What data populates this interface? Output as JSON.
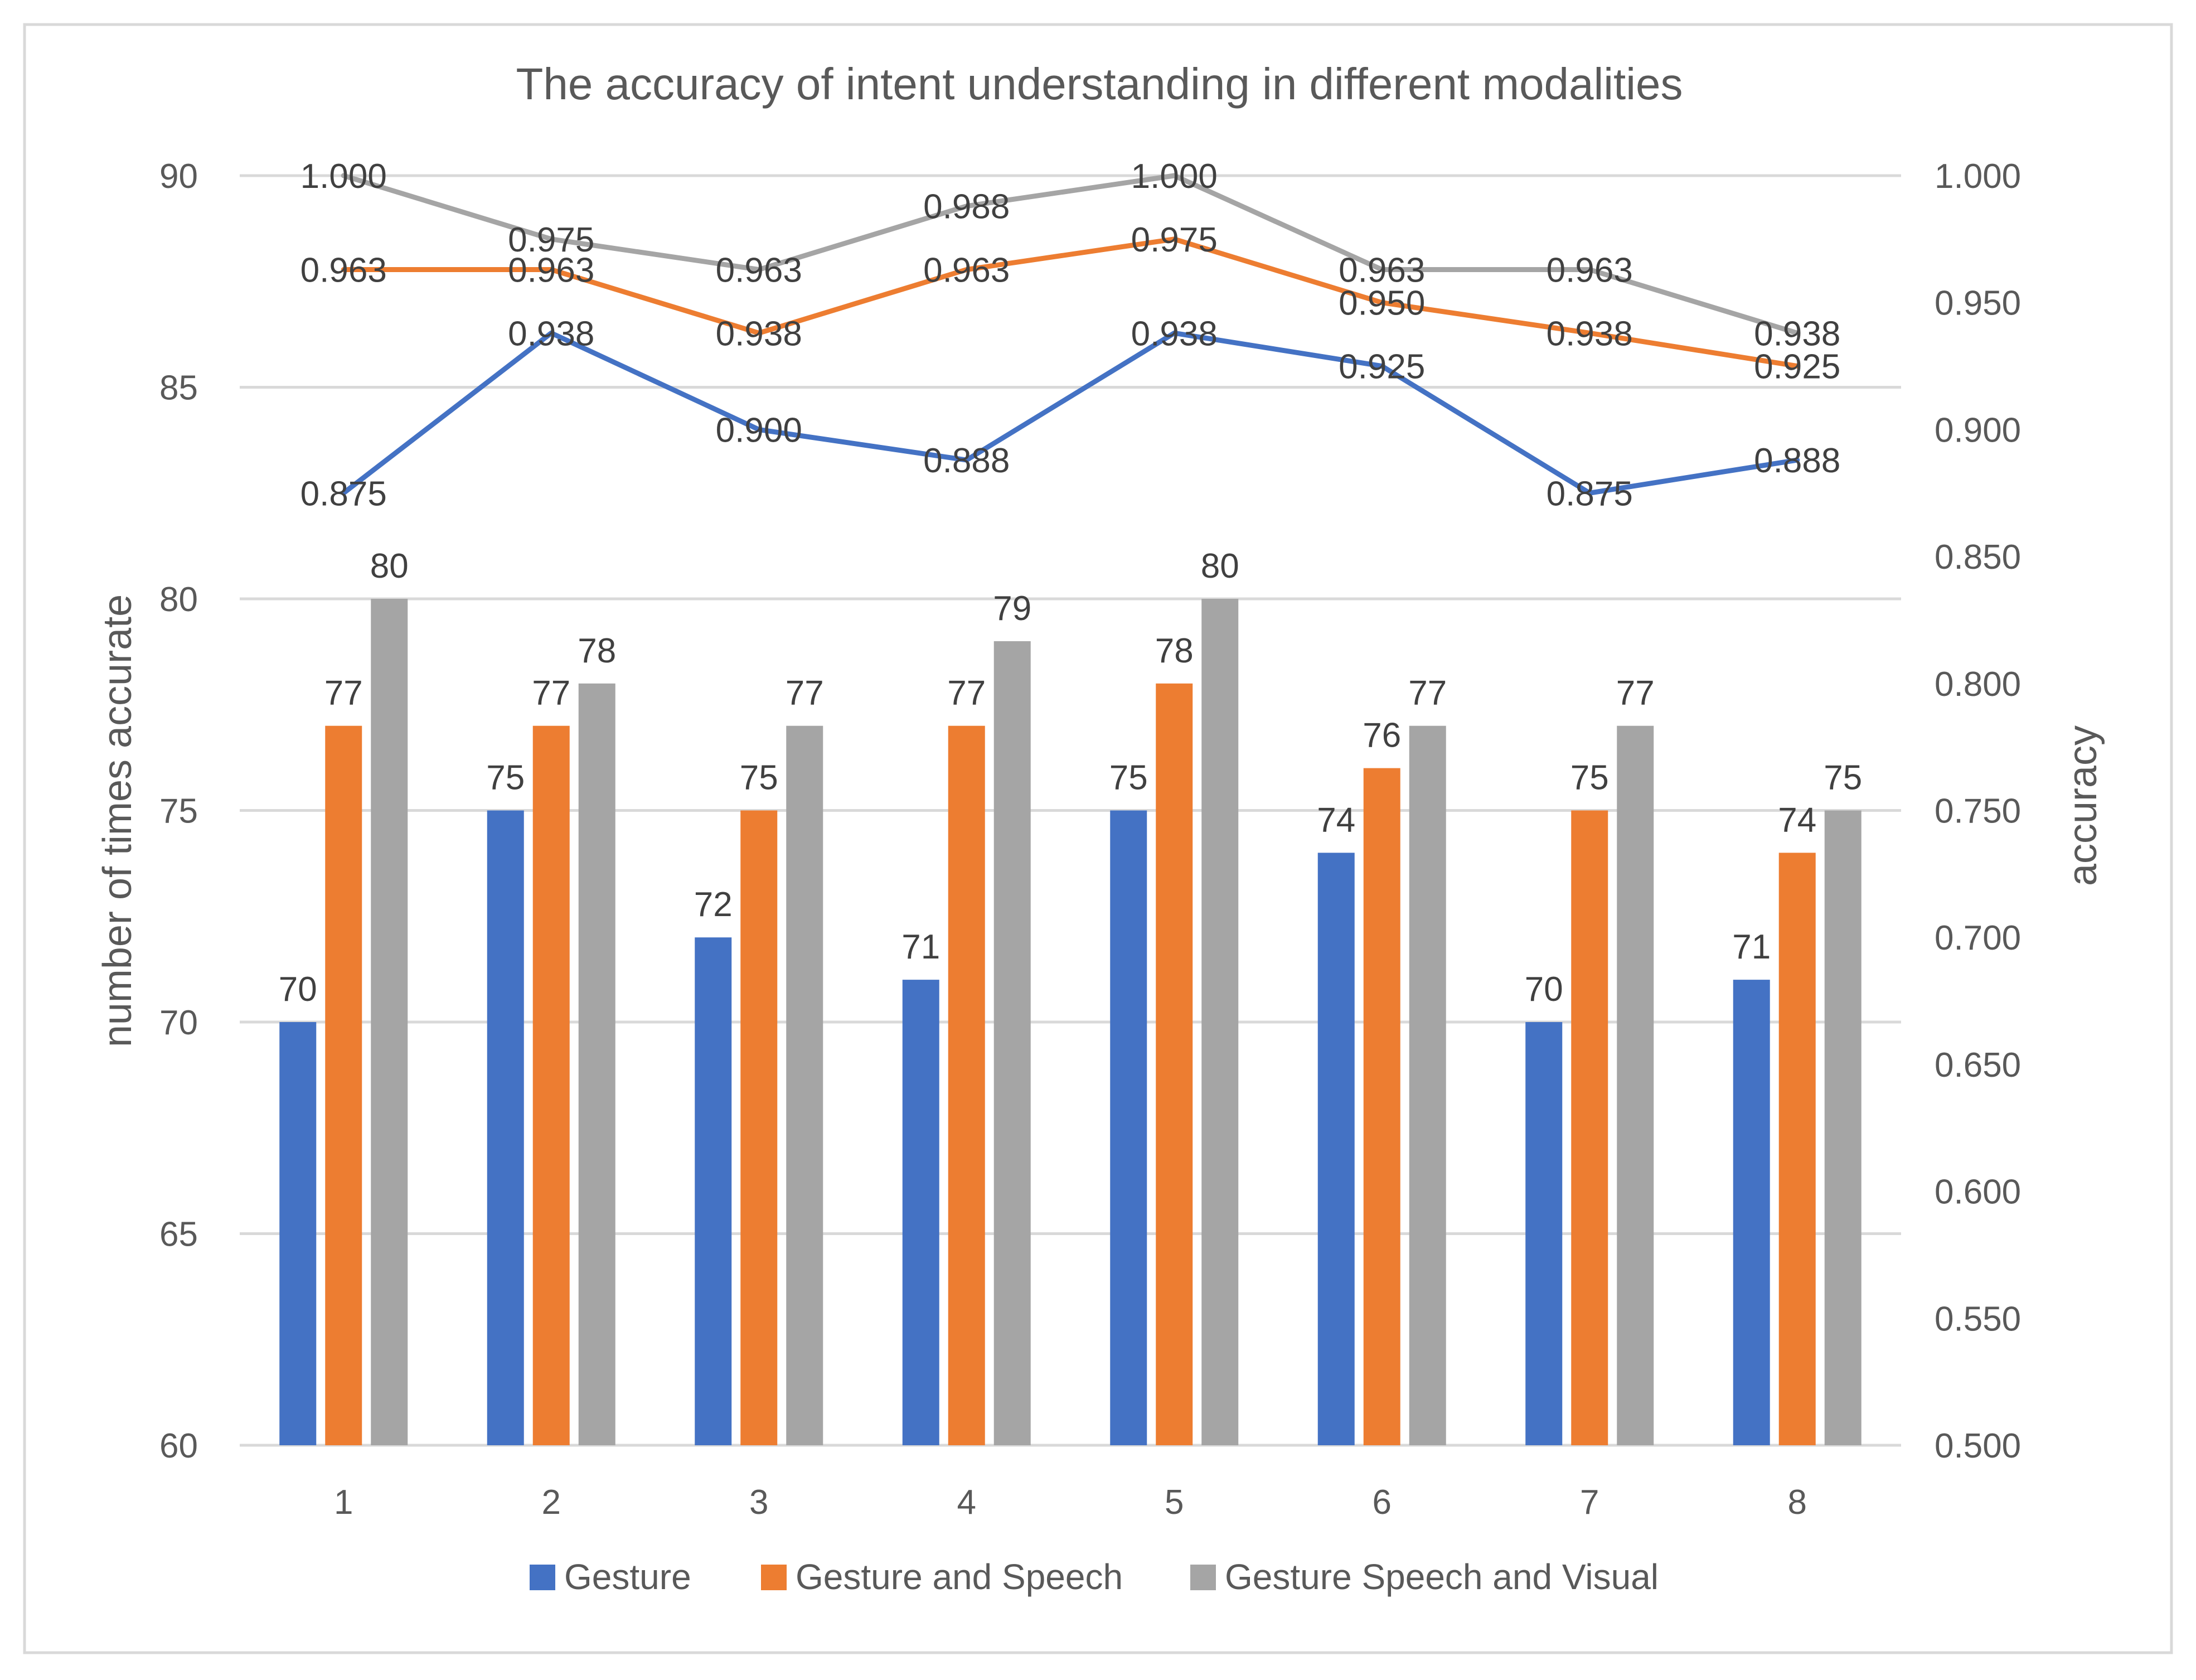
{
  "colors": {
    "gesture": "#4472C4",
    "gesture_speech": "#ED7D31",
    "gesture_speech_visual": "#A5A5A5",
    "gridline": "#D9D9D9",
    "axis_text": "#595959",
    "label_text": "#404040",
    "frame": "#D9D9D9"
  },
  "chart_data": {
    "type": "bar",
    "title": "The accuracy of intent understanding in different modalities",
    "xlabel": "",
    "ylabel": "number of times accurate",
    "y2label": "accuracy",
    "ylim": [
      60,
      90
    ],
    "y2lim": [
      0.5,
      1.0
    ],
    "yticks": [
      "60",
      "65",
      "70",
      "75",
      "80",
      "85",
      "90"
    ],
    "y2ticks": [
      "0.500",
      "0.550",
      "0.600",
      "0.650",
      "0.700",
      "0.750",
      "0.800",
      "0.850",
      "0.900",
      "0.950",
      "1.000"
    ],
    "categories": [
      "1",
      "2",
      "3",
      "4",
      "5",
      "6",
      "7",
      "8"
    ],
    "grid": true,
    "legend_position": "bottom",
    "series": [
      {
        "name": "Gesture",
        "color_key": "gesture",
        "values": [
          70,
          75,
          72,
          71,
          75,
          74,
          70,
          71
        ]
      },
      {
        "name": "Gesture and Speech",
        "color_key": "gesture_speech",
        "values": [
          77,
          77,
          75,
          77,
          78,
          76,
          75,
          74
        ]
      },
      {
        "name": "Gesture Speech and Visual",
        "color_key": "gesture_speech_visual",
        "values": [
          80,
          78,
          77,
          79,
          80,
          77,
          77,
          75
        ]
      }
    ],
    "line_series": [
      {
        "name": "Gesture",
        "color_key": "gesture",
        "values": [
          0.875,
          0.938,
          0.9,
          0.888,
          0.938,
          0.925,
          0.875,
          0.888
        ],
        "labels": [
          "0.875",
          "0.938",
          "0.900",
          "0.888",
          "0.938",
          "0.925",
          "0.875",
          "0.888"
        ]
      },
      {
        "name": "Gesture and Speech",
        "color_key": "gesture_speech",
        "values": [
          0.963,
          0.963,
          0.938,
          0.963,
          0.975,
          0.95,
          0.938,
          0.925
        ],
        "labels": [
          "0.963",
          "0.963",
          "0.938",
          "0.963",
          "0.975",
          "0.950",
          "0.938",
          "0.925"
        ]
      },
      {
        "name": "Gesture Speech and Visual",
        "color_key": "gesture_speech_visual",
        "values": [
          1.0,
          0.975,
          0.963,
          0.988,
          1.0,
          0.963,
          0.963,
          0.938
        ],
        "labels": [
          "1.000",
          "0.975",
          "0.963",
          "0.988",
          "1.000",
          "0.963",
          "0.963",
          "0.938"
        ]
      }
    ]
  }
}
